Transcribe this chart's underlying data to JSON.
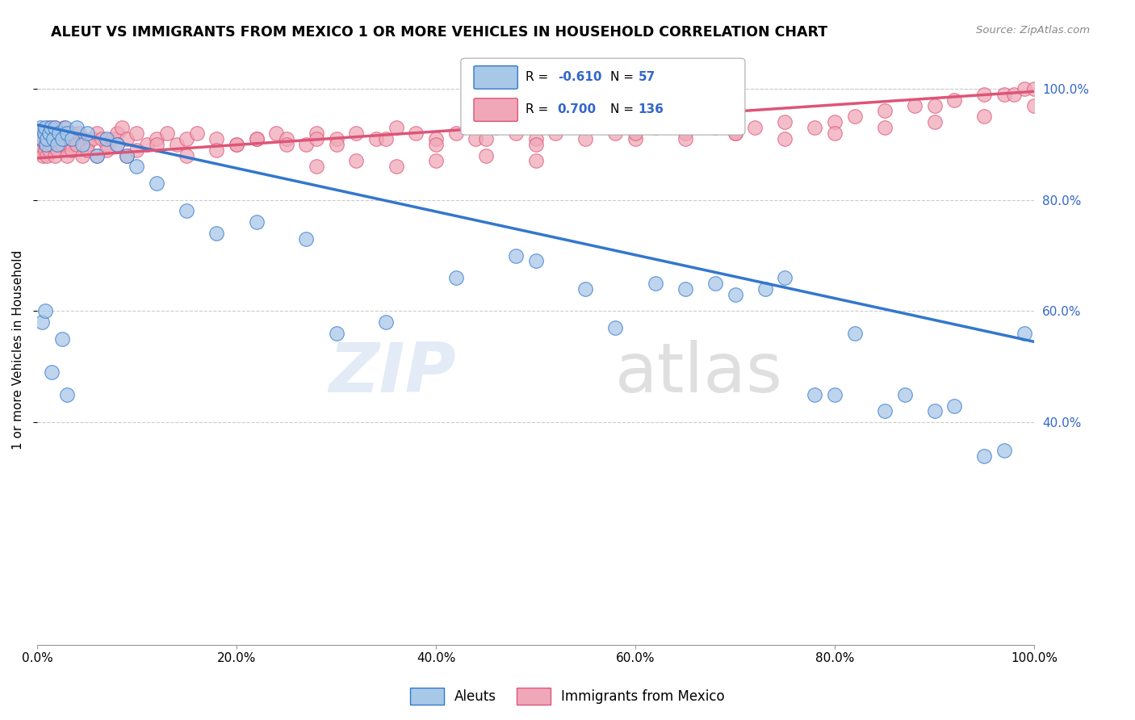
{
  "title": "ALEUT VS IMMIGRANTS FROM MEXICO 1 OR MORE VEHICLES IN HOUSEHOLD CORRELATION CHART",
  "source": "Source: ZipAtlas.com",
  "ylabel": "1 or more Vehicles in Household",
  "xlim": [
    0.0,
    1.0
  ],
  "ylim": [
    0.0,
    1.06
  ],
  "xticks": [
    0.0,
    0.2,
    0.4,
    0.6,
    0.8,
    1.0
  ],
  "yticks": [
    0.4,
    0.6,
    0.8,
    1.0
  ],
  "xtick_labels": [
    "0.0%",
    "20.0%",
    "40.0%",
    "60.0%",
    "80.0%",
    "100.0%"
  ],
  "ytick_labels": [
    "40.0%",
    "60.0%",
    "80.0%",
    "100.0%"
  ],
  "aleut_color": "#a8c8e8",
  "mexico_color": "#f0a8b8",
  "aleut_R": -0.61,
  "aleut_N": 57,
  "mexico_R": 0.7,
  "mexico_N": 136,
  "aleut_line_color": "#3377cc",
  "mexico_line_color": "#dd5577",
  "aleut_line_x0": 0.0,
  "aleut_line_y0": 0.935,
  "aleut_line_x1": 1.0,
  "aleut_line_y1": 0.545,
  "mexico_line_x0": 0.0,
  "mexico_line_y0": 0.875,
  "mexico_line_x1": 1.0,
  "mexico_line_y1": 0.995,
  "legend_label_aleut": "Aleuts",
  "legend_label_mexico": "Immigrants from Mexico",
  "watermark_zip": "ZIP",
  "watermark_atlas": "atlas",
  "aleut_scatter_x": [
    0.003,
    0.005,
    0.007,
    0.008,
    0.009,
    0.01,
    0.012,
    0.014,
    0.016,
    0.018,
    0.02,
    0.022,
    0.025,
    0.028,
    0.03,
    0.035,
    0.04,
    0.045,
    0.05,
    0.06,
    0.07,
    0.08,
    0.09,
    0.1,
    0.12,
    0.15,
    0.18,
    0.22,
    0.27,
    0.3,
    0.35,
    0.42,
    0.48,
    0.5,
    0.55,
    0.58,
    0.62,
    0.65,
    0.68,
    0.7,
    0.73,
    0.75,
    0.78,
    0.8,
    0.82,
    0.85,
    0.87,
    0.9,
    0.92,
    0.95,
    0.97,
    0.99,
    0.005,
    0.008,
    0.015,
    0.025,
    0.03
  ],
  "aleut_scatter_y": [
    0.93,
    0.91,
    0.92,
    0.93,
    0.9,
    0.91,
    0.92,
    0.93,
    0.91,
    0.93,
    0.9,
    0.92,
    0.91,
    0.93,
    0.92,
    0.91,
    0.93,
    0.9,
    0.92,
    0.88,
    0.91,
    0.9,
    0.88,
    0.86,
    0.83,
    0.78,
    0.74,
    0.76,
    0.73,
    0.56,
    0.58,
    0.66,
    0.7,
    0.69,
    0.64,
    0.57,
    0.65,
    0.64,
    0.65,
    0.63,
    0.64,
    0.66,
    0.45,
    0.45,
    0.56,
    0.42,
    0.45,
    0.42,
    0.43,
    0.34,
    0.35,
    0.56,
    0.58,
    0.6,
    0.49,
    0.55,
    0.45
  ],
  "mexico_scatter_x": [
    0.002,
    0.003,
    0.004,
    0.005,
    0.006,
    0.007,
    0.008,
    0.009,
    0.01,
    0.011,
    0.012,
    0.013,
    0.014,
    0.015,
    0.016,
    0.017,
    0.018,
    0.019,
    0.02,
    0.021,
    0.022,
    0.023,
    0.025,
    0.027,
    0.03,
    0.032,
    0.035,
    0.038,
    0.04,
    0.042,
    0.045,
    0.05,
    0.055,
    0.06,
    0.065,
    0.07,
    0.075,
    0.08,
    0.085,
    0.09,
    0.1,
    0.11,
    0.12,
    0.13,
    0.14,
    0.15,
    0.16,
    0.18,
    0.2,
    0.22,
    0.24,
    0.25,
    0.27,
    0.28,
    0.3,
    0.32,
    0.34,
    0.36,
    0.38,
    0.4,
    0.42,
    0.44,
    0.46,
    0.48,
    0.5,
    0.52,
    0.55,
    0.58,
    0.6,
    0.62,
    0.65,
    0.68,
    0.7,
    0.72,
    0.75,
    0.78,
    0.8,
    0.82,
    0.85,
    0.88,
    0.9,
    0.92,
    0.95,
    0.97,
    0.98,
    0.99,
    1.0,
    0.006,
    0.008,
    0.01,
    0.012,
    0.015,
    0.018,
    0.02,
    0.025,
    0.03,
    0.035,
    0.04,
    0.045,
    0.05,
    0.06,
    0.07,
    0.08,
    0.09,
    0.1,
    0.12,
    0.15,
    0.18,
    0.2,
    0.22,
    0.25,
    0.28,
    0.3,
    0.35,
    0.4,
    0.45,
    0.5,
    0.55,
    0.6,
    0.65,
    0.7,
    0.75,
    0.8,
    0.85,
    0.9,
    0.95,
    1.0,
    0.28,
    0.32,
    0.36,
    0.4,
    0.45,
    0.5
  ],
  "mexico_scatter_y": [
    0.92,
    0.9,
    0.91,
    0.89,
    0.92,
    0.91,
    0.9,
    0.92,
    0.91,
    0.93,
    0.9,
    0.92,
    0.91,
    0.9,
    0.92,
    0.91,
    0.93,
    0.9,
    0.91,
    0.92,
    0.9,
    0.91,
    0.92,
    0.93,
    0.91,
    0.9,
    0.92,
    0.91,
    0.9,
    0.92,
    0.91,
    0.9,
    0.91,
    0.92,
    0.91,
    0.9,
    0.91,
    0.92,
    0.93,
    0.91,
    0.92,
    0.9,
    0.91,
    0.92,
    0.9,
    0.91,
    0.92,
    0.91,
    0.9,
    0.91,
    0.92,
    0.91,
    0.9,
    0.92,
    0.91,
    0.92,
    0.91,
    0.93,
    0.92,
    0.91,
    0.92,
    0.91,
    0.93,
    0.92,
    0.91,
    0.92,
    0.93,
    0.92,
    0.91,
    0.93,
    0.92,
    0.93,
    0.92,
    0.93,
    0.94,
    0.93,
    0.94,
    0.95,
    0.96,
    0.97,
    0.97,
    0.98,
    0.99,
    0.99,
    0.99,
    1.0,
    1.0,
    0.88,
    0.89,
    0.88,
    0.89,
    0.9,
    0.88,
    0.89,
    0.9,
    0.88,
    0.89,
    0.9,
    0.88,
    0.89,
    0.88,
    0.89,
    0.9,
    0.88,
    0.89,
    0.9,
    0.88,
    0.89,
    0.9,
    0.91,
    0.9,
    0.91,
    0.9,
    0.91,
    0.9,
    0.91,
    0.9,
    0.91,
    0.92,
    0.91,
    0.92,
    0.91,
    0.92,
    0.93,
    0.94,
    0.95,
    0.97,
    0.86,
    0.87,
    0.86,
    0.87,
    0.88,
    0.87
  ]
}
